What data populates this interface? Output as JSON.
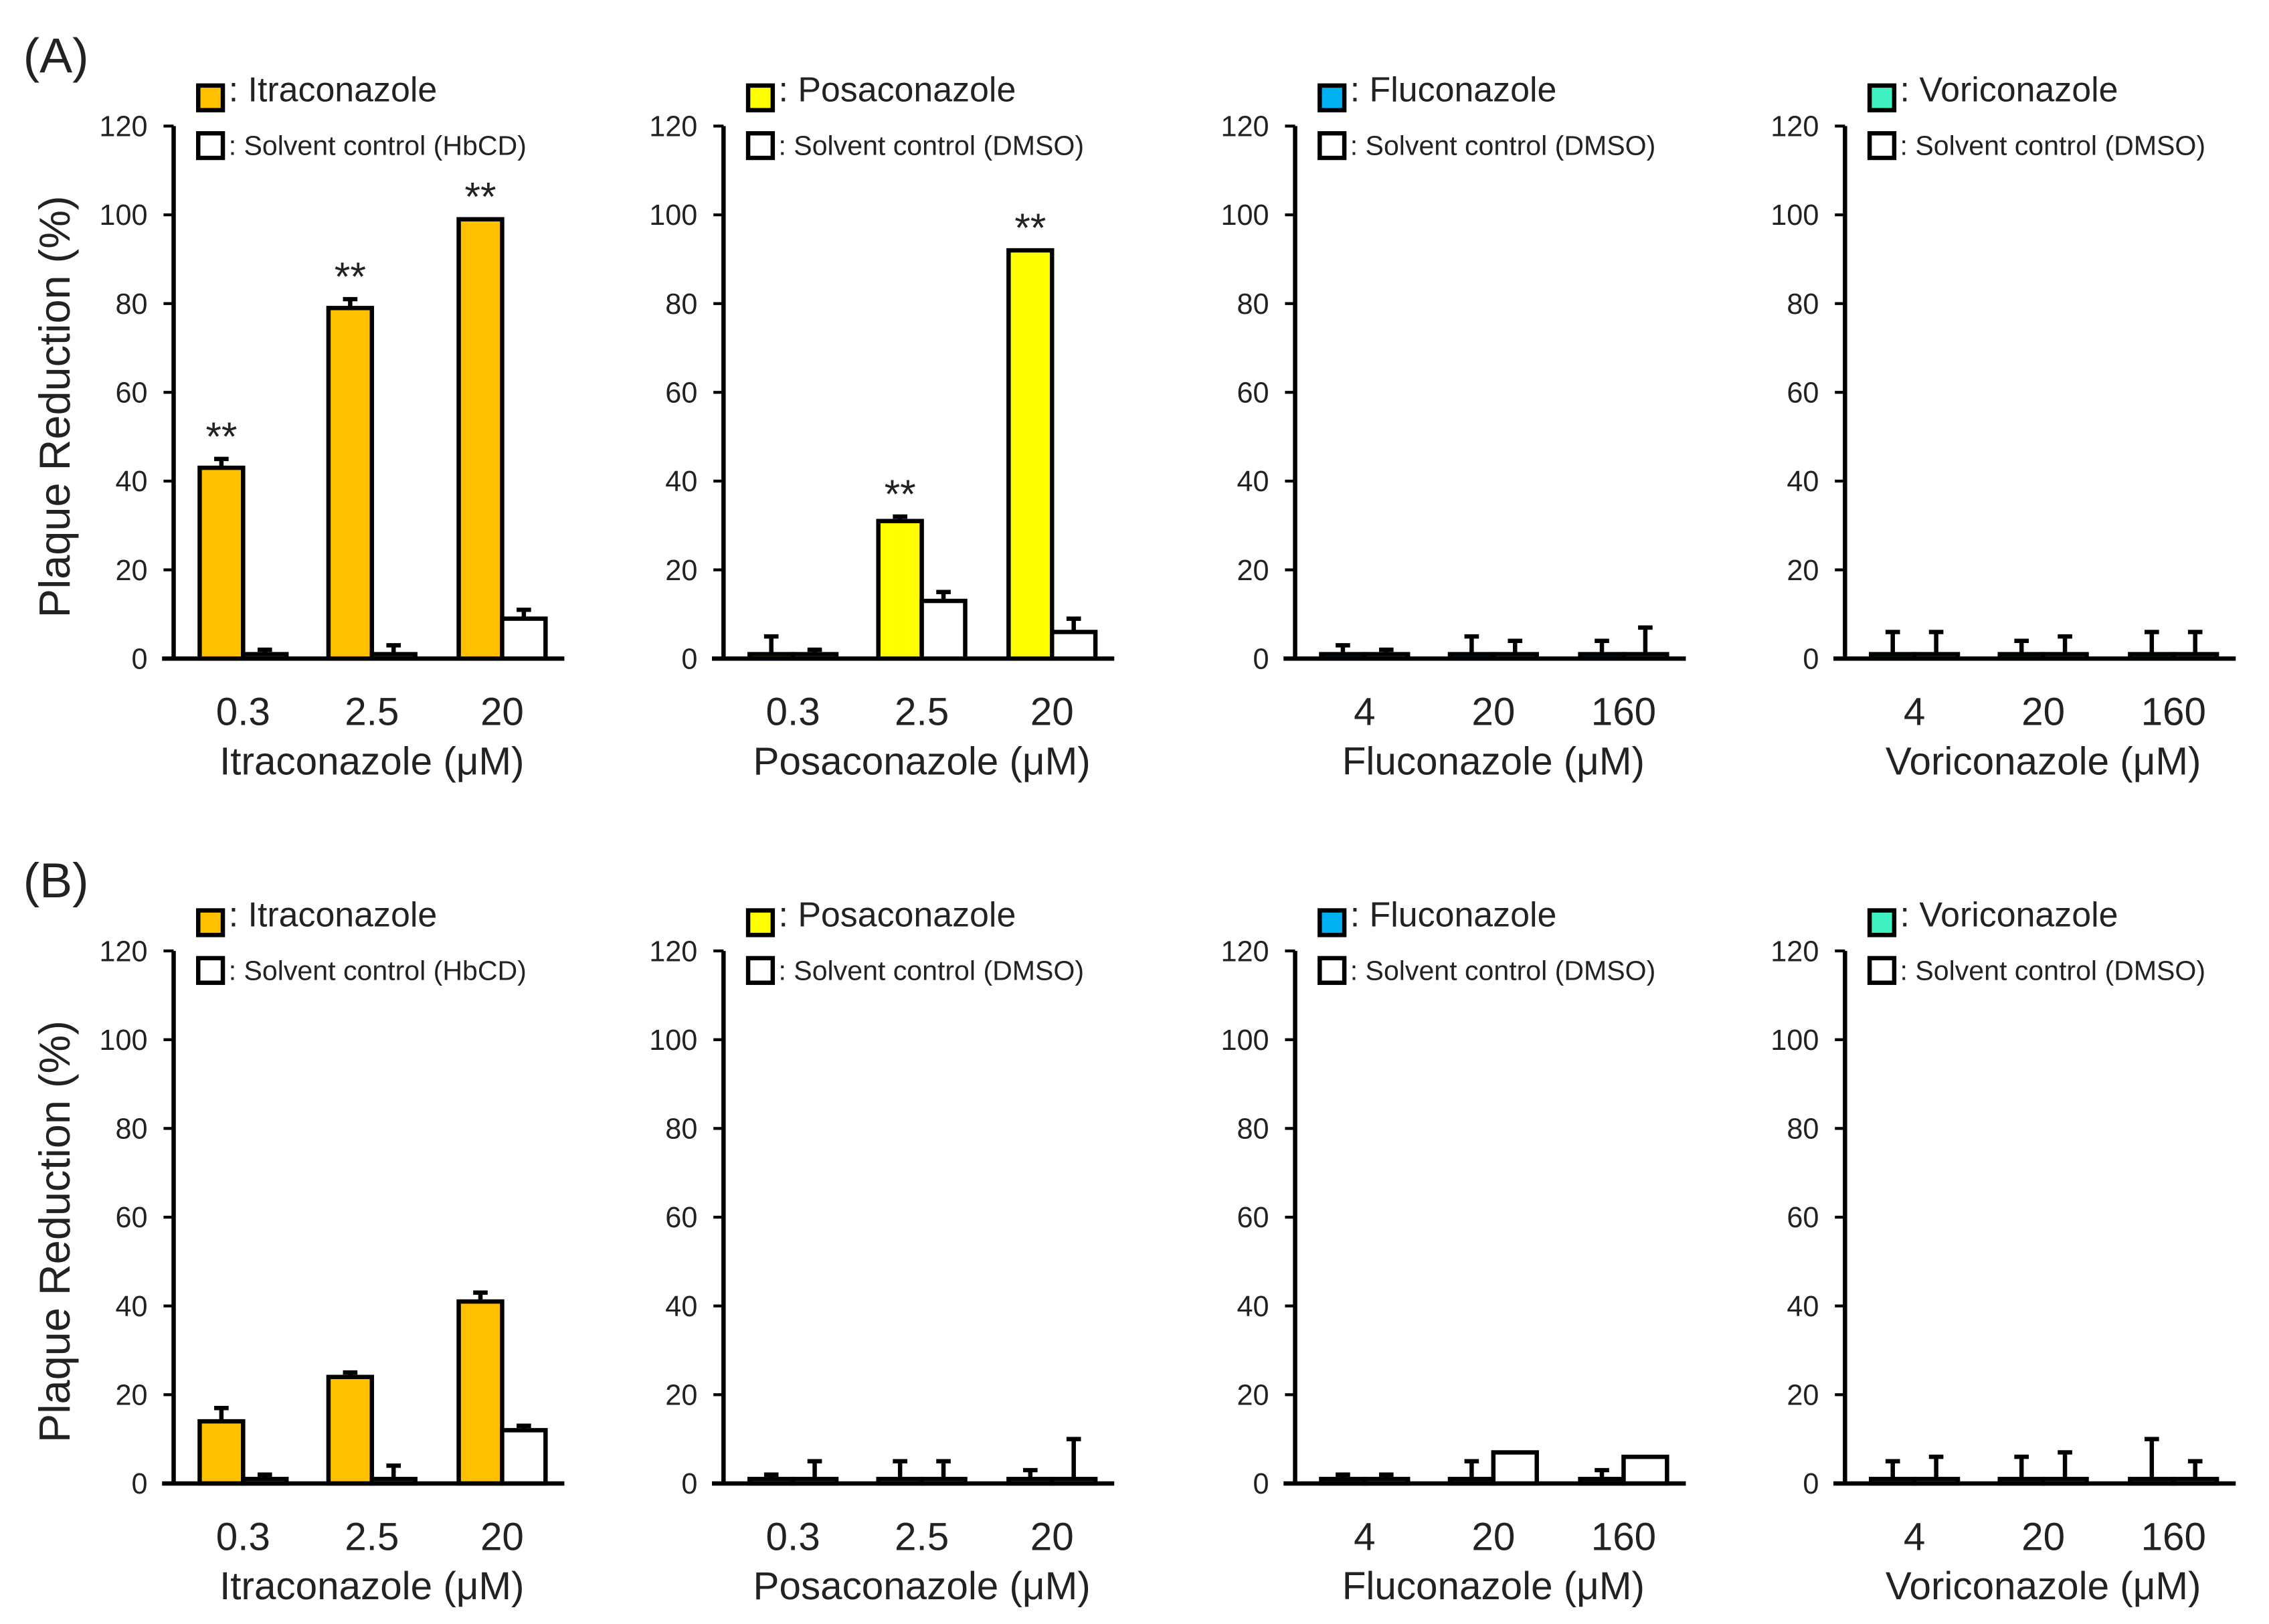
{
  "panel_labels": [
    "(A)",
    "(B)"
  ],
  "colors": {
    "Itraconazole": "#FFC000",
    "Posaconazole": "#FFFF00",
    "Fluconazole": "#00B0F0",
    "Voriconazole": "#40F0C0",
    "solvent": "#FFFFFF"
  },
  "chart_data": [
    {
      "type": "bar",
      "row": "A",
      "drug": "Itraconazole",
      "legend": [
        ": Itraconazole",
        ": Solvent control (HbCD)"
      ],
      "xlabel": "Itraconazole (μM)",
      "ylabel": "Plaque Reduction (%)",
      "ylim": [
        0,
        120
      ],
      "yticks": [
        0,
        20,
        40,
        60,
        80,
        100,
        120
      ],
      "categories": [
        "0.3",
        "2.5",
        "20"
      ],
      "series": [
        {
          "name": "Itraconazole",
          "values": [
            43,
            79,
            99
          ],
          "errors": [
            2,
            2,
            0
          ],
          "significance": [
            "**",
            "**",
            "**"
          ]
        },
        {
          "name": "Solvent control (HbCD)",
          "values": [
            1,
            1,
            9
          ],
          "errors": [
            1,
            2,
            2
          ]
        }
      ]
    },
    {
      "type": "bar",
      "row": "A",
      "drug": "Posaconazole",
      "legend": [
        ": Posaconazole",
        ": Solvent control (DMSO)"
      ],
      "xlabel": "Posaconazole (μM)",
      "ylabel": "",
      "ylim": [
        0,
        120
      ],
      "yticks": [
        0,
        20,
        40,
        60,
        80,
        100,
        120
      ],
      "categories": [
        "0.3",
        "2.5",
        "20"
      ],
      "series": [
        {
          "name": "Posaconazole",
          "values": [
            1,
            31,
            92
          ],
          "errors": [
            4,
            1,
            0
          ],
          "significance": [
            "",
            "**",
            "**"
          ]
        },
        {
          "name": "Solvent control (DMSO)",
          "values": [
            1,
            13,
            6
          ],
          "errors": [
            1,
            2,
            3
          ]
        }
      ]
    },
    {
      "type": "bar",
      "row": "A",
      "drug": "Fluconazole",
      "legend": [
        ": Fluconazole",
        ": Solvent control (DMSO)"
      ],
      "xlabel": "Fluconazole (μM)",
      "ylabel": "",
      "ylim": [
        0,
        120
      ],
      "yticks": [
        0,
        20,
        40,
        60,
        80,
        100,
        120
      ],
      "categories": [
        "4",
        "20",
        "160"
      ],
      "series": [
        {
          "name": "Fluconazole",
          "values": [
            1,
            1,
            1
          ],
          "errors": [
            2,
            4,
            3
          ]
        },
        {
          "name": "Solvent control (DMSO)",
          "values": [
            1,
            1,
            1
          ],
          "errors": [
            1,
            3,
            6
          ]
        }
      ]
    },
    {
      "type": "bar",
      "row": "A",
      "drug": "Voriconazole",
      "legend": [
        ": Voriconazole",
        ": Solvent control (DMSO)"
      ],
      "xlabel": "Voriconazole (μM)",
      "ylabel": "",
      "ylim": [
        0,
        120
      ],
      "yticks": [
        0,
        20,
        40,
        60,
        80,
        100,
        120
      ],
      "categories": [
        "4",
        "20",
        "160"
      ],
      "series": [
        {
          "name": "Voriconazole",
          "values": [
            1,
            1,
            1
          ],
          "errors": [
            5,
            3,
            5
          ]
        },
        {
          "name": "Solvent control (DMSO)",
          "values": [
            1,
            1,
            1
          ],
          "errors": [
            5,
            4,
            5
          ]
        }
      ]
    },
    {
      "type": "bar",
      "row": "B",
      "drug": "Itraconazole",
      "legend": [
        ": Itraconazole",
        ": Solvent control (HbCD)"
      ],
      "xlabel": "Itraconazole (μM)",
      "ylabel": "Plaque Reduction (%)",
      "ylim": [
        0,
        120
      ],
      "yticks": [
        0,
        20,
        40,
        60,
        80,
        100,
        120
      ],
      "categories": [
        "0.3",
        "2.5",
        "20"
      ],
      "series": [
        {
          "name": "Itraconazole",
          "values": [
            14,
            24,
            41
          ],
          "errors": [
            3,
            1,
            2
          ]
        },
        {
          "name": "Solvent control (HbCD)",
          "values": [
            1,
            1,
            12
          ],
          "errors": [
            1,
            3,
            1
          ]
        }
      ]
    },
    {
      "type": "bar",
      "row": "B",
      "drug": "Posaconazole",
      "legend": [
        ": Posaconazole",
        ": Solvent control (DMSO)"
      ],
      "xlabel": "Posaconazole (μM)",
      "ylabel": "",
      "ylim": [
        0,
        120
      ],
      "yticks": [
        0,
        20,
        40,
        60,
        80,
        100,
        120
      ],
      "categories": [
        "0.3",
        "2.5",
        "20"
      ],
      "series": [
        {
          "name": "Posaconazole",
          "values": [
            1,
            1,
            1
          ],
          "errors": [
            1,
            4,
            2
          ]
        },
        {
          "name": "Solvent control (DMSO)",
          "values": [
            1,
            1,
            1
          ],
          "errors": [
            4,
            4,
            9
          ]
        }
      ]
    },
    {
      "type": "bar",
      "row": "B",
      "drug": "Fluconazole",
      "legend": [
        ": Fluconazole",
        ": Solvent control (DMSO)"
      ],
      "xlabel": "Fluconazole (μM)",
      "ylabel": "",
      "ylim": [
        0,
        120
      ],
      "yticks": [
        0,
        20,
        40,
        60,
        80,
        100,
        120
      ],
      "categories": [
        "4",
        "20",
        "160"
      ],
      "series": [
        {
          "name": "Fluconazole",
          "values": [
            1,
            1,
            1
          ],
          "errors": [
            1,
            4,
            2
          ]
        },
        {
          "name": "Solvent control (DMSO)",
          "values": [
            1,
            7,
            6
          ],
          "errors": [
            1,
            0,
            0
          ]
        }
      ]
    },
    {
      "type": "bar",
      "row": "B",
      "drug": "Voriconazole",
      "legend": [
        ": Voriconazole",
        ": Solvent control (DMSO)"
      ],
      "xlabel": "Voriconazole (μM)",
      "ylabel": "",
      "ylim": [
        0,
        120
      ],
      "yticks": [
        0,
        20,
        40,
        60,
        80,
        100,
        120
      ],
      "categories": [
        "4",
        "20",
        "160"
      ],
      "series": [
        {
          "name": "Voriconazole",
          "values": [
            1,
            1,
            1
          ],
          "errors": [
            4,
            5,
            9
          ]
        },
        {
          "name": "Solvent control (DMSO)",
          "values": [
            1,
            1,
            1
          ],
          "errors": [
            5,
            6,
            4
          ]
        }
      ]
    }
  ]
}
